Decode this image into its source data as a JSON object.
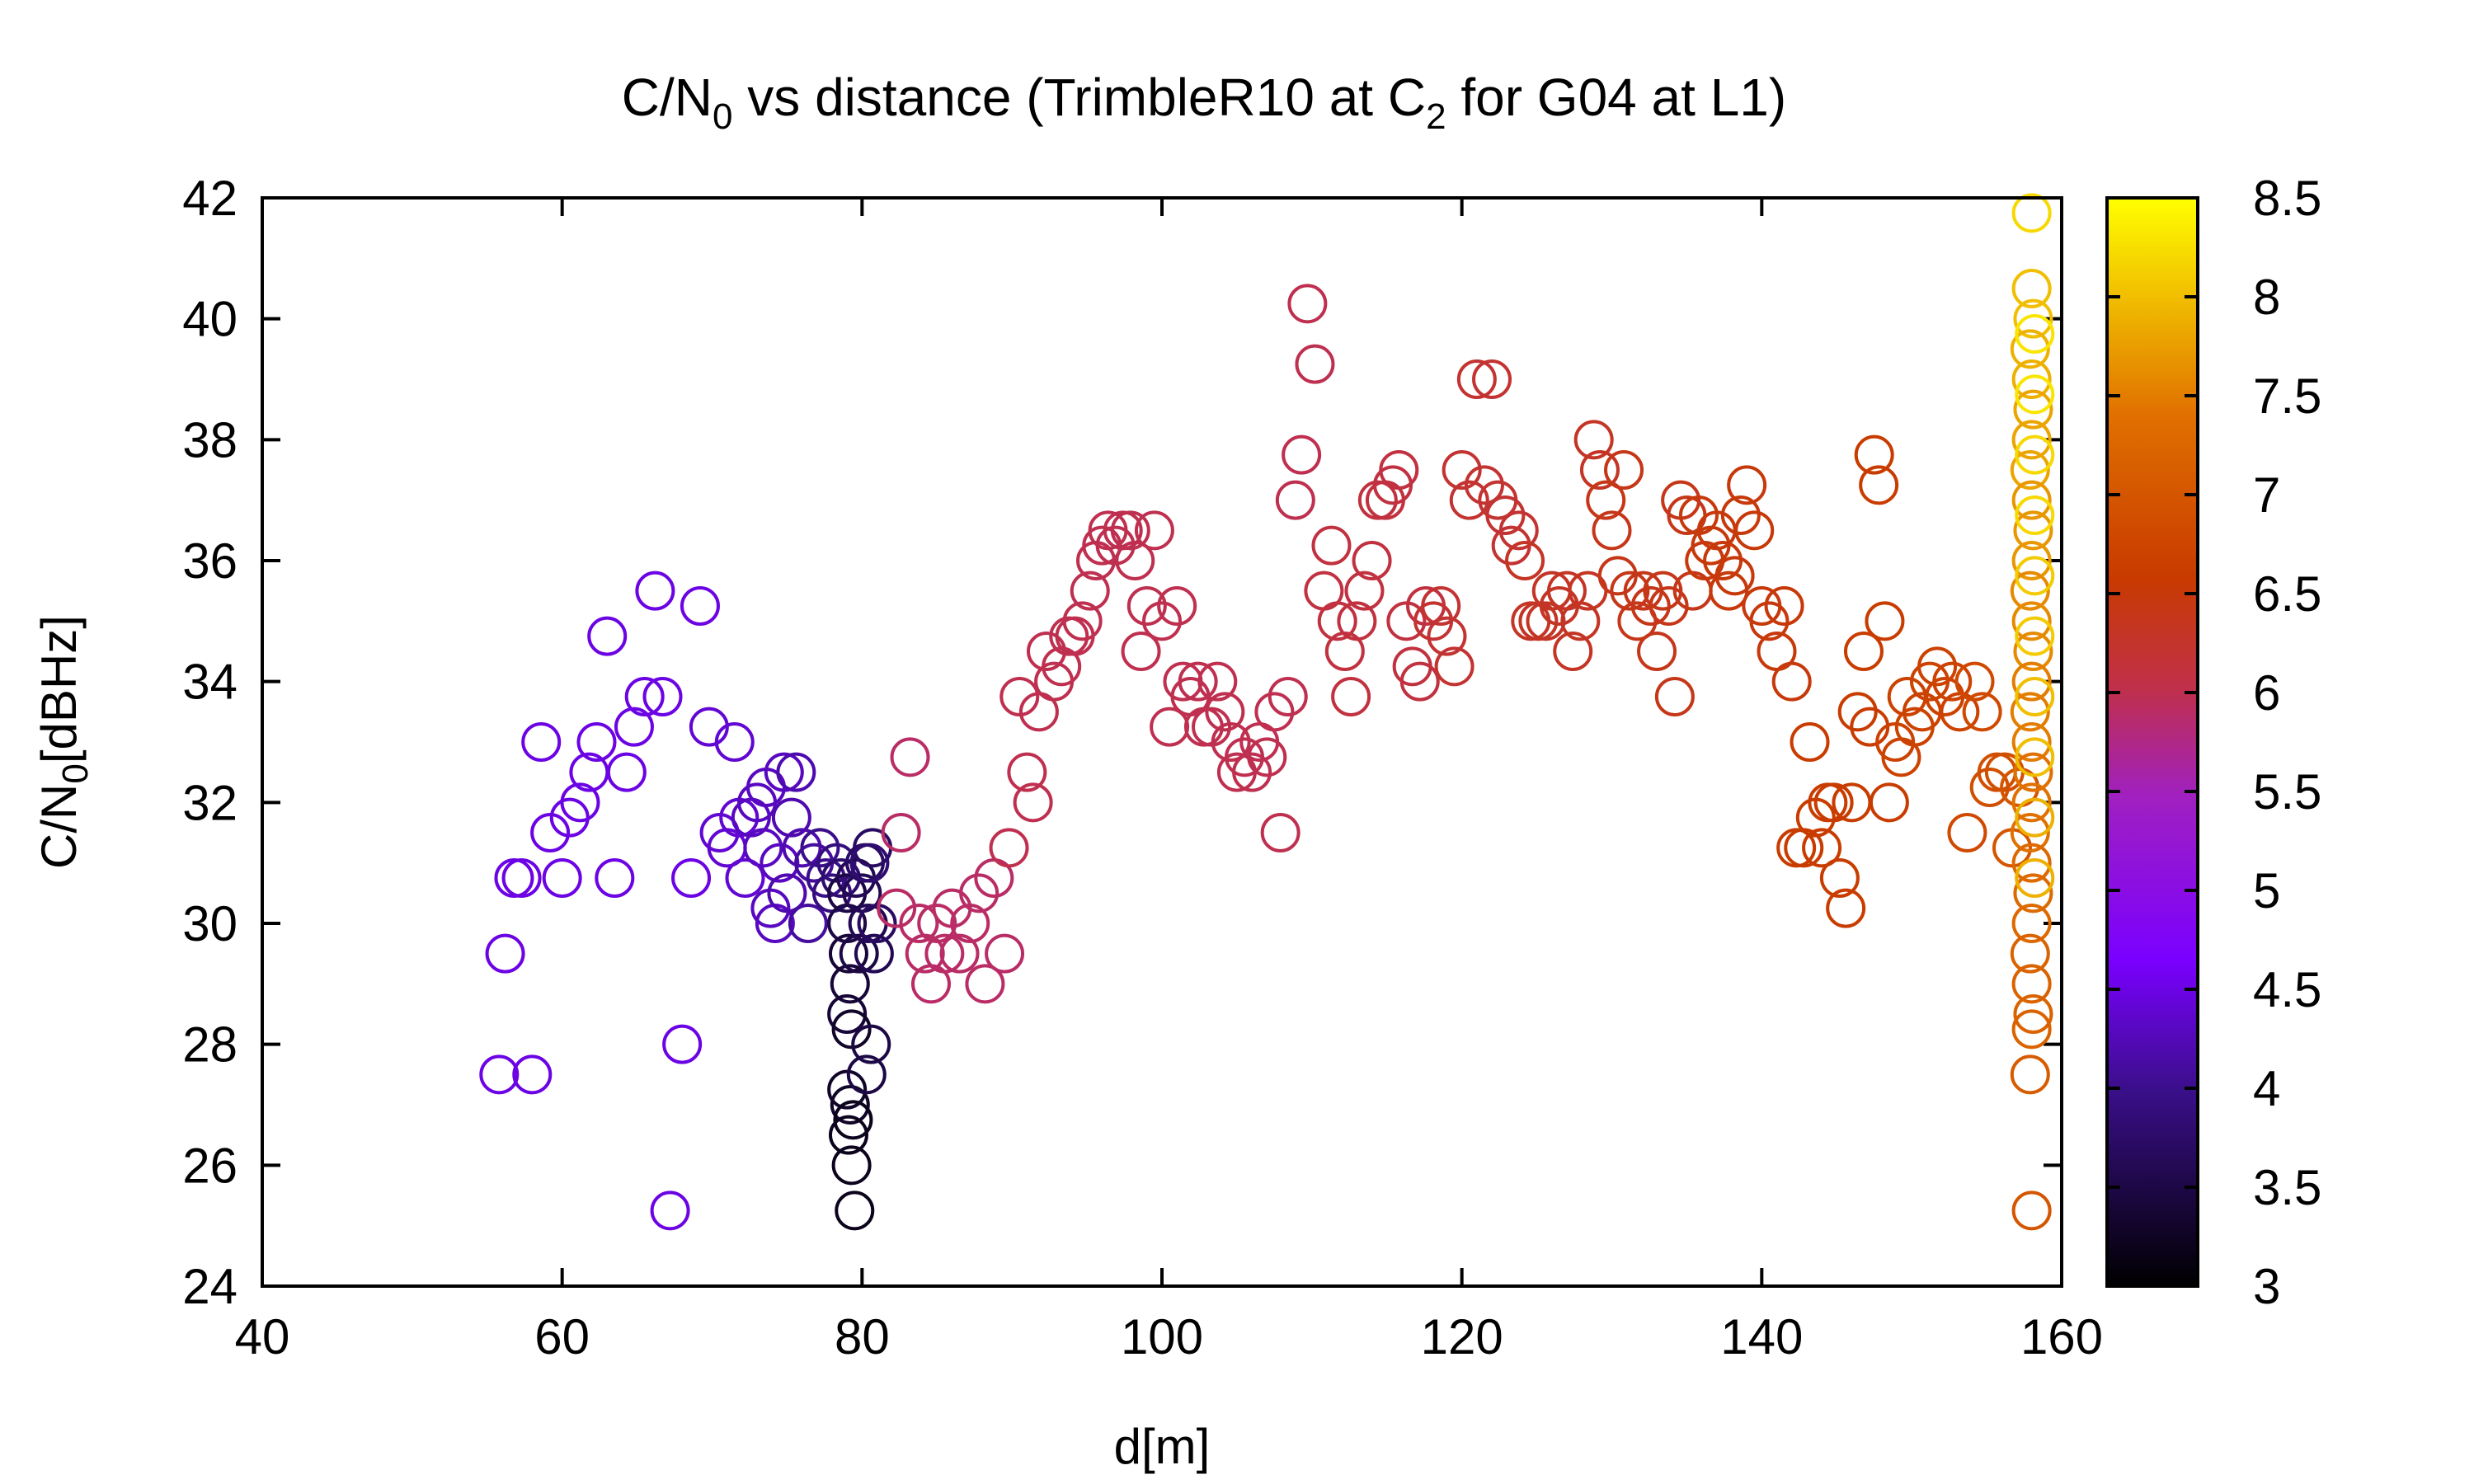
{
  "chart_data": {
    "type": "scatter",
    "title": {
      "main": "C/N",
      "sub0": "0",
      "middle": " vs distance (TrimbleR10 at C",
      "sub2": "2",
      "end": " for G04 at L1)"
    },
    "xlabel": "d[m]",
    "ylabel": {
      "main": "C/N",
      "sub": "0",
      "rest": "[dBHz]"
    },
    "xlim": [
      40,
      160
    ],
    "ylim": [
      24,
      42
    ],
    "xticks": [
      "40",
      "60",
      "80",
      "100",
      "120",
      "140",
      "160"
    ],
    "yticks": [
      "24",
      "26",
      "28",
      "30",
      "32",
      "34",
      "36",
      "38",
      "40",
      "42"
    ],
    "colorbar": {
      "range": [
        3,
        8.5
      ],
      "ticks": [
        "3",
        "3.5",
        "4",
        "4.5",
        "5",
        "5.5",
        "6",
        "6.5",
        "7",
        "7.5",
        "8",
        "8.5"
      ],
      "colormap": "gnuplot-pm3d-black-blue-red-yellow"
    },
    "marker": "open-circle",
    "points": [
      [
        55.8,
        27.5,
        4.5
      ],
      [
        56.2,
        29.5,
        4.5
      ],
      [
        56.8,
        30.75,
        4.5
      ],
      [
        57.3,
        30.75,
        4.5
      ],
      [
        58.0,
        27.5,
        4.5
      ],
      [
        58.6,
        33.0,
        4.5
      ],
      [
        59.2,
        31.5,
        4.5
      ],
      [
        60.0,
        30.75,
        4.5
      ],
      [
        60.5,
        31.75,
        4.5
      ],
      [
        61.2,
        32.0,
        4.5
      ],
      [
        61.8,
        32.5,
        4.5
      ],
      [
        62.3,
        33.0,
        4.5
      ],
      [
        63.0,
        34.75,
        4.5
      ],
      [
        63.5,
        30.75,
        4.5
      ],
      [
        64.3,
        32.5,
        4.5
      ],
      [
        64.8,
        33.25,
        4.5
      ],
      [
        65.5,
        33.75,
        4.5
      ],
      [
        66.2,
        35.5,
        4.5
      ],
      [
        66.7,
        33.75,
        4.5
      ],
      [
        67.2,
        25.25,
        4.5
      ],
      [
        68.0,
        28.0,
        4.5
      ],
      [
        68.6,
        30.75,
        4.5
      ],
      [
        69.2,
        35.25,
        4.5
      ],
      [
        69.8,
        33.25,
        4.4
      ],
      [
        70.5,
        31.5,
        4.4
      ],
      [
        71.0,
        31.25,
        4.4
      ],
      [
        71.5,
        33.0,
        4.4
      ],
      [
        71.8,
        31.75,
        4.4
      ],
      [
        72.2,
        30.75,
        4.4
      ],
      [
        72.6,
        31.75,
        4.3
      ],
      [
        73.0,
        32.0,
        4.3
      ],
      [
        73.4,
        31.25,
        4.3
      ],
      [
        73.6,
        32.25,
        4.3
      ],
      [
        73.9,
        30.25,
        4.3
      ],
      [
        74.2,
        30.0,
        4.3
      ],
      [
        74.5,
        31.0,
        4.3
      ],
      [
        74.8,
        32.5,
        4.3
      ],
      [
        75.0,
        30.5,
        4.2
      ],
      [
        75.3,
        31.75,
        4.2
      ],
      [
        75.6,
        32.5,
        4.2
      ],
      [
        76.0,
        31.25,
        4.2
      ],
      [
        76.4,
        30.0,
        4.1
      ],
      [
        76.8,
        31.0,
        4.1
      ],
      [
        77.2,
        31.25,
        4.0
      ],
      [
        77.6,
        30.75,
        4.0
      ],
      [
        78.0,
        30.5,
        3.9
      ],
      [
        78.3,
        31.0,
        3.9
      ],
      [
        78.6,
        30.75,
        3.8
      ],
      [
        79.0,
        30.5,
        3.5
      ],
      [
        79.0,
        30.0,
        3.5
      ],
      [
        79.1,
        29.5,
        3.4
      ],
      [
        79.2,
        29.0,
        3.4
      ],
      [
        79.0,
        28.5,
        3.4
      ],
      [
        79.3,
        28.25,
        3.3
      ],
      [
        79.0,
        27.25,
        3.3
      ],
      [
        79.2,
        27.0,
        3.3
      ],
      [
        79.4,
        26.75,
        3.2
      ],
      [
        79.1,
        26.5,
        3.2
      ],
      [
        79.3,
        26.0,
        3.2
      ],
      [
        79.5,
        25.25,
        3.2
      ],
      [
        79.6,
        30.75,
        3.6
      ],
      [
        79.8,
        29.5,
        3.5
      ],
      [
        80.0,
        30.5,
        3.6
      ],
      [
        80.2,
        31.0,
        3.7
      ],
      [
        80.3,
        27.5,
        3.5
      ],
      [
        80.4,
        30.0,
        3.6
      ],
      [
        80.6,
        28.0,
        3.5
      ],
      [
        80.7,
        31.25,
        3.7
      ],
      [
        80.8,
        29.5,
        3.6
      ],
      [
        81.0,
        30.0,
        3.7
      ],
      [
        80.5,
        31.0,
        3.8
      ],
      [
        82.3,
        30.25,
        5.9
      ],
      [
        82.6,
        31.5,
        5.9
      ],
      [
        83.2,
        32.75,
        5.9
      ],
      [
        83.8,
        30.0,
        5.9
      ],
      [
        84.2,
        29.5,
        5.9
      ],
      [
        84.6,
        29.0,
        5.9
      ],
      [
        85.0,
        30.0,
        5.9
      ],
      [
        85.5,
        29.5,
        5.9
      ],
      [
        86.0,
        30.25,
        5.9
      ],
      [
        86.5,
        29.5,
        5.9
      ],
      [
        87.2,
        30.0,
        5.9
      ],
      [
        87.8,
        30.5,
        5.9
      ],
      [
        88.2,
        29.0,
        5.9
      ],
      [
        88.8,
        30.75,
        5.9
      ],
      [
        89.5,
        29.5,
        5.9
      ],
      [
        89.8,
        31.25,
        6.0
      ],
      [
        90.5,
        33.75,
        6.0
      ],
      [
        91.0,
        32.5,
        6.0
      ],
      [
        91.4,
        32.0,
        6.0
      ],
      [
        91.8,
        33.5,
        6.0
      ],
      [
        92.3,
        34.5,
        6.0
      ],
      [
        92.8,
        34.0,
        6.0
      ],
      [
        93.3,
        34.25,
        6.0
      ],
      [
        93.8,
        34.75,
        6.0
      ],
      [
        94.2,
        34.75,
        6.0
      ],
      [
        94.7,
        35.0,
        6.0
      ],
      [
        95.2,
        35.5,
        6.0
      ],
      [
        95.6,
        36.0,
        6.0
      ],
      [
        96.0,
        36.25,
        6.0
      ],
      [
        96.4,
        36.5,
        6.0
      ],
      [
        96.9,
        36.25,
        6.0
      ],
      [
        97.4,
        36.5,
        6.0
      ],
      [
        97.9,
        36.5,
        6.0
      ],
      [
        98.2,
        36.0,
        6.0
      ],
      [
        98.6,
        34.5,
        6.0
      ],
      [
        99.0,
        35.25,
        6.0
      ],
      [
        99.5,
        36.5,
        6.0
      ],
      [
        100.0,
        35.0,
        6.0
      ],
      [
        100.5,
        33.25,
        6.0
      ],
      [
        101.0,
        35.25,
        6.0
      ],
      [
        101.4,
        34.0,
        6.0
      ],
      [
        101.9,
        33.75,
        6.0
      ],
      [
        102.4,
        34.0,
        6.0
      ],
      [
        102.8,
        33.25,
        6.0
      ],
      [
        103.3,
        33.25,
        6.0
      ],
      [
        103.7,
        34.0,
        6.0
      ],
      [
        104.2,
        33.5,
        6.0
      ],
      [
        104.6,
        33.0,
        6.0
      ],
      [
        105.0,
        32.5,
        6.0
      ],
      [
        105.5,
        32.75,
        6.0
      ],
      [
        106.0,
        32.5,
        6.0
      ],
      [
        106.5,
        33.0,
        6.0
      ],
      [
        107.0,
        32.75,
        6.0
      ],
      [
        107.5,
        33.5,
        6.0
      ],
      [
        107.9,
        31.5,
        6.0
      ],
      [
        108.4,
        33.75,
        6.0
      ],
      [
        108.9,
        37.0,
        6.0
      ],
      [
        109.3,
        37.75,
        6.0
      ],
      [
        109.7,
        40.25,
        6.0
      ],
      [
        110.2,
        39.25,
        6.0
      ],
      [
        110.8,
        35.5,
        6.1
      ],
      [
        111.3,
        36.25,
        6.1
      ],
      [
        111.7,
        35.0,
        6.1
      ],
      [
        112.2,
        34.5,
        6.1
      ],
      [
        112.6,
        33.75,
        6.1
      ],
      [
        113.0,
        35.0,
        6.1
      ],
      [
        113.5,
        35.5,
        6.1
      ],
      [
        114.0,
        36.0,
        6.1
      ],
      [
        114.4,
        37.0,
        6.1
      ],
      [
        114.9,
        37.0,
        6.1
      ],
      [
        115.4,
        37.25,
        6.1
      ],
      [
        115.8,
        37.5,
        6.1
      ],
      [
        116.3,
        35.0,
        6.1
      ],
      [
        116.7,
        34.25,
        6.1
      ],
      [
        117.2,
        34.0,
        6.1
      ],
      [
        117.6,
        35.25,
        6.1
      ],
      [
        118.1,
        35.0,
        6.2
      ],
      [
        118.6,
        35.25,
        6.2
      ],
      [
        119.0,
        34.75,
        6.2
      ],
      [
        119.5,
        34.25,
        6.2
      ],
      [
        120.0,
        37.5,
        6.2
      ],
      [
        120.5,
        37.0,
        6.2
      ],
      [
        121.0,
        39.0,
        6.2
      ],
      [
        121.5,
        37.25,
        6.2
      ],
      [
        122.0,
        39.0,
        6.2
      ],
      [
        122.4,
        37.0,
        6.2
      ],
      [
        122.9,
        36.75,
        6.2
      ],
      [
        123.3,
        36.25,
        6.2
      ],
      [
        123.8,
        36.5,
        6.2
      ],
      [
        124.2,
        36.0,
        6.3
      ],
      [
        124.6,
        35.0,
        6.3
      ],
      [
        125.1,
        35.0,
        6.3
      ],
      [
        125.6,
        35.0,
        6.3
      ],
      [
        126.0,
        35.5,
        6.3
      ],
      [
        126.5,
        35.25,
        6.3
      ],
      [
        127.0,
        35.5,
        6.3
      ],
      [
        127.4,
        34.5,
        6.3
      ],
      [
        127.9,
        35.0,
        6.3
      ],
      [
        128.4,
        35.5,
        6.3
      ],
      [
        128.8,
        38.0,
        6.3
      ],
      [
        129.2,
        37.5,
        6.3
      ],
      [
        129.6,
        37.0,
        6.4
      ],
      [
        130.0,
        36.5,
        6.4
      ],
      [
        130.4,
        35.75,
        6.4
      ],
      [
        130.8,
        37.5,
        6.4
      ],
      [
        131.2,
        35.5,
        6.4
      ],
      [
        131.7,
        35.0,
        6.4
      ],
      [
        132.1,
        35.5,
        6.4
      ],
      [
        132.6,
        35.25,
        6.4
      ],
      [
        133.0,
        34.5,
        6.4
      ],
      [
        133.4,
        35.5,
        6.4
      ],
      [
        133.8,
        35.25,
        6.4
      ],
      [
        134.2,
        33.75,
        6.4
      ],
      [
        134.6,
        37.0,
        6.4
      ],
      [
        135.0,
        36.75,
        6.4
      ],
      [
        135.4,
        35.5,
        6.4
      ],
      [
        135.8,
        36.75,
        6.5
      ],
      [
        136.2,
        36.0,
        6.5
      ],
      [
        136.6,
        36.25,
        6.5
      ],
      [
        137.0,
        36.5,
        6.5
      ],
      [
        137.4,
        36.0,
        6.5
      ],
      [
        137.8,
        35.5,
        6.5
      ],
      [
        138.2,
        35.75,
        6.5
      ],
      [
        138.6,
        36.75,
        6.5
      ],
      [
        139.0,
        37.25,
        6.5
      ],
      [
        139.5,
        36.5,
        6.5
      ],
      [
        140.0,
        35.25,
        6.5
      ],
      [
        140.5,
        35.0,
        6.5
      ],
      [
        141.0,
        34.5,
        6.5
      ],
      [
        141.5,
        35.25,
        6.5
      ],
      [
        142.0,
        34.0,
        6.5
      ],
      [
        142.3,
        31.25,
        6.6
      ],
      [
        142.8,
        31.25,
        6.6
      ],
      [
        143.2,
        33.0,
        6.6
      ],
      [
        143.6,
        31.75,
        6.6
      ],
      [
        144.0,
        31.25,
        6.6
      ],
      [
        144.4,
        32.0,
        6.6
      ],
      [
        144.8,
        32.0,
        6.6
      ],
      [
        145.2,
        30.75,
        6.6
      ],
      [
        145.6,
        30.25,
        6.6
      ],
      [
        146.0,
        32.0,
        6.6
      ],
      [
        146.4,
        33.5,
        6.6
      ],
      [
        146.8,
        34.5,
        6.6
      ],
      [
        147.2,
        33.25,
        6.6
      ],
      [
        147.5,
        37.75,
        6.6
      ],
      [
        147.8,
        37.25,
        6.6
      ],
      [
        148.2,
        35.0,
        6.6
      ],
      [
        148.5,
        32.0,
        6.6
      ],
      [
        148.9,
        33.0,
        6.7
      ],
      [
        149.3,
        32.75,
        6.7
      ],
      [
        149.7,
        33.75,
        6.7
      ],
      [
        150.2,
        33.25,
        6.7
      ],
      [
        150.7,
        33.5,
        6.7
      ],
      [
        151.2,
        34.0,
        6.7
      ],
      [
        151.7,
        34.25,
        6.7
      ],
      [
        152.2,
        33.75,
        6.7
      ],
      [
        152.7,
        34.0,
        6.7
      ],
      [
        153.2,
        33.5,
        6.7
      ],
      [
        153.7,
        31.5,
        6.8
      ],
      [
        154.2,
        34.0,
        6.8
      ],
      [
        154.7,
        33.5,
        6.8
      ],
      [
        155.2,
        32.25,
        6.9
      ],
      [
        155.7,
        32.5,
        6.9
      ],
      [
        156.2,
        32.5,
        6.9
      ],
      [
        156.7,
        31.25,
        7.0
      ],
      [
        157.2,
        32.25,
        7.0
      ],
      [
        158.0,
        41.75,
        8.2
      ],
      [
        158.0,
        40.5,
        8.0
      ],
      [
        158.1,
        40.0,
        8.0
      ],
      [
        157.9,
        39.5,
        7.9
      ],
      [
        158.0,
        39.0,
        7.9
      ],
      [
        158.1,
        38.5,
        7.8
      ],
      [
        158.0,
        38.0,
        7.8
      ],
      [
        157.9,
        37.5,
        7.8
      ],
      [
        158.0,
        37.0,
        7.7
      ],
      [
        158.1,
        36.5,
        7.7
      ],
      [
        158.0,
        36.0,
        7.7
      ],
      [
        157.9,
        35.5,
        7.6
      ],
      [
        158.0,
        35.0,
        7.6
      ],
      [
        158.1,
        34.5,
        7.6
      ],
      [
        158.0,
        34.0,
        7.5
      ],
      [
        157.9,
        33.5,
        7.5
      ],
      [
        158.0,
        33.0,
        7.5
      ],
      [
        158.1,
        32.5,
        7.4
      ],
      [
        158.0,
        32.0,
        7.4
      ],
      [
        157.9,
        31.5,
        7.4
      ],
      [
        158.0,
        31.0,
        7.3
      ],
      [
        158.1,
        30.5,
        7.3
      ],
      [
        158.0,
        30.0,
        7.3
      ],
      [
        157.9,
        29.5,
        7.2
      ],
      [
        158.0,
        29.0,
        7.2
      ],
      [
        158.1,
        28.5,
        7.2
      ],
      [
        158.0,
        28.25,
        7.2
      ],
      [
        157.9,
        27.5,
        7.1
      ],
      [
        158.0,
        25.25,
        7.0
      ],
      [
        158.2,
        39.75,
        8.3
      ],
      [
        158.2,
        38.75,
        8.3
      ],
      [
        158.2,
        37.75,
        8.2
      ],
      [
        158.2,
        36.75,
        8.2
      ],
      [
        158.2,
        35.75,
        8.1
      ],
      [
        158.2,
        34.75,
        8.1
      ],
      [
        158.2,
        33.75,
        8.0
      ],
      [
        158.2,
        32.75,
        8.0
      ],
      [
        158.2,
        31.75,
        7.9
      ],
      [
        158.2,
        30.75,
        7.9
      ]
    ]
  }
}
